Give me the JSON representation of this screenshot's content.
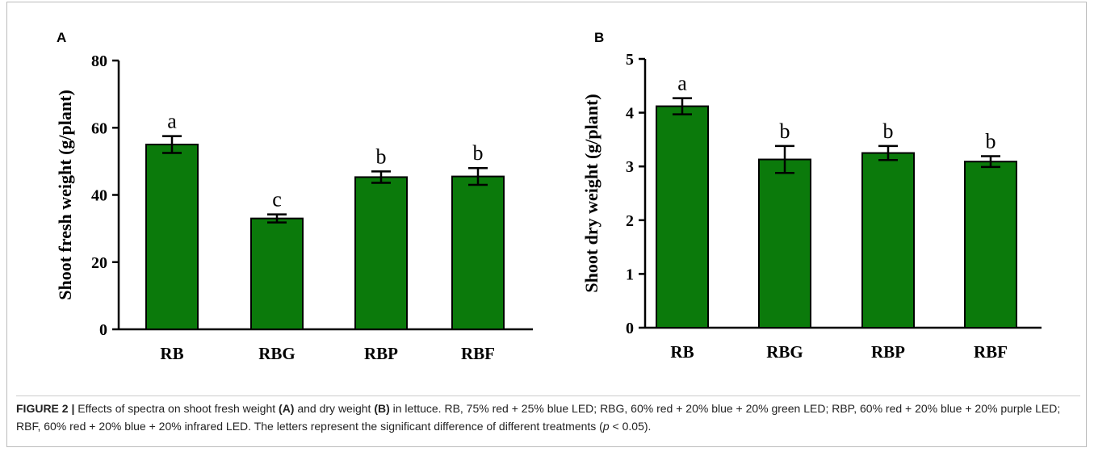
{
  "chart_data": [
    {
      "type": "bar",
      "panel": "A",
      "y_label": "Shoot fresh weight (g/plant)",
      "categories": [
        "RB",
        "RBG",
        "RBP",
        "RBF"
      ],
      "values": [
        55,
        33,
        45.3,
        45.5
      ],
      "errors": [
        2.5,
        1.2,
        1.7,
        2.5
      ],
      "annotations": [
        "a",
        "c",
        "b",
        "b"
      ],
      "color": "#0b7a0b",
      "ylim": [
        0,
        80
      ],
      "yticks": [
        0,
        20,
        40,
        60,
        80
      ]
    },
    {
      "type": "bar",
      "panel": "B",
      "y_label": "Shoot dry weight (g/plant)",
      "categories": [
        "RB",
        "RBG",
        "RBP",
        "RBF"
      ],
      "values": [
        4.12,
        3.13,
        3.25,
        3.09
      ],
      "errors": [
        0.15,
        0.25,
        0.13,
        0.1
      ],
      "annotations": [
        "a",
        "b",
        "b",
        "b"
      ],
      "color": "#0b7a0b",
      "ylim": [
        0,
        5
      ],
      "yticks": [
        0,
        1,
        2,
        3,
        4,
        5
      ]
    }
  ],
  "caption": [
    {
      "text": "FIGURE 2 |",
      "style": "bold"
    },
    {
      "text": " Effects of spectra on shoot fresh weight ",
      "style": "normal"
    },
    {
      "text": "(A)",
      "style": "bold"
    },
    {
      "text": " and dry weight ",
      "style": "normal"
    },
    {
      "text": "(B)",
      "style": "bold"
    },
    {
      "text": " in lettuce. RB, 75% red + 25% blue LED; RBG, 60% red + 20% blue + 20% green LED; RBP, 60% red + 20% blue + 20% purple LED; RBF, 60% red + 20% blue + 20% infrared LED. The letters represent the significant difference of different treatments (",
      "style": "normal"
    },
    {
      "text": "p",
      "style": "italic"
    },
    {
      "text": " < 0.05).",
      "style": "normal"
    }
  ]
}
